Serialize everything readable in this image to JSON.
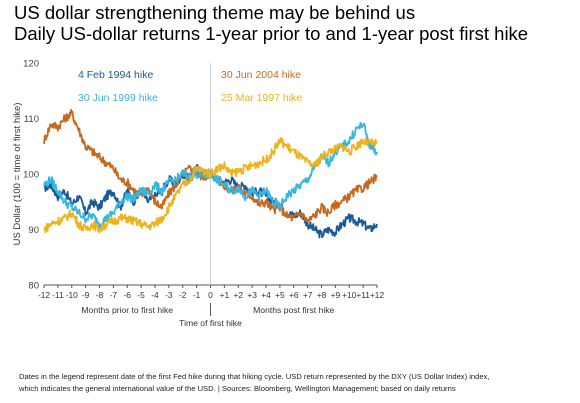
{
  "header": {
    "title": "US dollar strengthening theme may be behind us",
    "subtitle": "Daily US-dollar returns 1-year prior to and 1-year post first hike"
  },
  "footnote": {
    "line1": "Dates in the legend represent date of the first Fed hike during that hiking cycle. USD return represented by the DXY (US Dollar Index) index,",
    "line2": "which indicates the general international value of the USD. | Sources: Bloomberg, Wellington Management; based on daily returns"
  },
  "chart_data": {
    "type": "line",
    "ylabel": "US Dollar (100 = time of first hike)",
    "ylim": [
      80,
      120
    ],
    "yticks": [
      80,
      90,
      100,
      110,
      120
    ],
    "xlim": [
      -12,
      12
    ],
    "xticks": [
      "-12",
      "-11",
      "-10",
      "-9",
      "-8",
      "-7",
      "-6",
      "-5",
      "-4",
      "-3",
      "-2",
      "-1",
      "0",
      "+1",
      "+2",
      "+3",
      "+4",
      "+5",
      "+6",
      "+7",
      "+8",
      "+9",
      "+10",
      "+11",
      "+12"
    ],
    "x_group_labels": {
      "prior": "Months prior to first hike",
      "center": "Time of first hike",
      "post": "Months post first hike"
    },
    "grid": "vertical line at 0 only",
    "series": [
      {
        "name": "4 Feb 1994 hike",
        "color": "#1a5a96",
        "points": [
          [
            -12,
            97.5
          ],
          [
            -11.5,
            98
          ],
          [
            -11,
            96
          ],
          [
            -10.5,
            97
          ],
          [
            -10,
            94.5
          ],
          [
            -9.5,
            96
          ],
          [
            -9,
            93
          ],
          [
            -8.5,
            95
          ],
          [
            -8,
            94
          ],
          [
            -7.5,
            96
          ],
          [
            -7,
            97
          ],
          [
            -6.5,
            94
          ],
          [
            -6,
            97
          ],
          [
            -5.5,
            95
          ],
          [
            -5,
            97
          ],
          [
            -4.5,
            95
          ],
          [
            -4,
            96
          ],
          [
            -3.5,
            97
          ],
          [
            -3,
            99
          ],
          [
            -2.5,
            98
          ],
          [
            -2,
            100
          ],
          [
            -1.5,
            99
          ],
          [
            -1,
            101
          ],
          [
            -0.5,
            100
          ],
          [
            0,
            100
          ],
          [
            0.5,
            99
          ],
          [
            1,
            98.5
          ],
          [
            1.5,
            99
          ],
          [
            2,
            97.5
          ],
          [
            2.5,
            98
          ],
          [
            3,
            96.5
          ],
          [
            3.5,
            97
          ],
          [
            4,
            96
          ],
          [
            4.5,
            95
          ],
          [
            5,
            94.5
          ],
          [
            5.5,
            93
          ],
          [
            6,
            92.5
          ],
          [
            6.5,
            93
          ],
          [
            7,
            91
          ],
          [
            7.5,
            90
          ],
          [
            8,
            89
          ],
          [
            8.5,
            90
          ],
          [
            9,
            89.5
          ],
          [
            9.5,
            91
          ],
          [
            10,
            92
          ],
          [
            10.5,
            91.5
          ],
          [
            11,
            91
          ],
          [
            11.5,
            90
          ],
          [
            12,
            91
          ]
        ]
      },
      {
        "name": "30 Jun 2004 hike",
        "color": "#c8681c",
        "points": [
          [
            -12,
            106
          ],
          [
            -11.5,
            109
          ],
          [
            -11,
            108.5
          ],
          [
            -10.5,
            110
          ],
          [
            -10,
            111
          ],
          [
            -9.5,
            108
          ],
          [
            -9,
            105
          ],
          [
            -8.5,
            104
          ],
          [
            -8,
            103
          ],
          [
            -7.5,
            102
          ],
          [
            -7,
            101
          ],
          [
            -6.5,
            99
          ],
          [
            -6,
            98.5
          ],
          [
            -5.5,
            97
          ],
          [
            -5,
            96
          ],
          [
            -4.5,
            97.5
          ],
          [
            -4,
            95
          ],
          [
            -3.5,
            94
          ],
          [
            -3,
            96.5
          ],
          [
            -2.5,
            98
          ],
          [
            -2,
            100
          ],
          [
            -1.5,
            101
          ],
          [
            -1,
            100
          ],
          [
            -0.5,
            99.5
          ],
          [
            0,
            100
          ],
          [
            0.5,
            99
          ],
          [
            1,
            98
          ],
          [
            1.5,
            97
          ],
          [
            2,
            97.5
          ],
          [
            2.5,
            96.5
          ],
          [
            3,
            96
          ],
          [
            3.5,
            94.5
          ],
          [
            4,
            95
          ],
          [
            4.5,
            93.5
          ],
          [
            5,
            94
          ],
          [
            5.5,
            92.5
          ],
          [
            6,
            92
          ],
          [
            6.5,
            93
          ],
          [
            7,
            91.5
          ],
          [
            7.5,
            92.5
          ],
          [
            8,
            94
          ],
          [
            8.5,
            93
          ],
          [
            9,
            94.5
          ],
          [
            9.5,
            95
          ],
          [
            10,
            96
          ],
          [
            10.5,
            97
          ],
          [
            11,
            97.5
          ],
          [
            11.5,
            98.5
          ],
          [
            12,
            99.5
          ]
        ]
      },
      {
        "name": "30 Jun 1999 hike",
        "color": "#36b6e0",
        "points": [
          [
            -12,
            98
          ],
          [
            -11.5,
            99
          ],
          [
            -11,
            97
          ],
          [
            -10.5,
            95
          ],
          [
            -10,
            94
          ],
          [
            -9.5,
            93
          ],
          [
            -9,
            92
          ],
          [
            -8.5,
            92.5
          ],
          [
            -8,
            91
          ],
          [
            -7.5,
            92
          ],
          [
            -7,
            93
          ],
          [
            -6.5,
            95
          ],
          [
            -6,
            96
          ],
          [
            -5.5,
            95.5
          ],
          [
            -5,
            97
          ],
          [
            -4.5,
            96.5
          ],
          [
            -4,
            98
          ],
          [
            -3.5,
            97
          ],
          [
            -3,
            98.5
          ],
          [
            -2.5,
            99
          ],
          [
            -2,
            100
          ],
          [
            -1.5,
            99.5
          ],
          [
            -1,
            100
          ],
          [
            -0.5,
            99.5
          ],
          [
            0,
            100
          ],
          [
            0.5,
            99
          ],
          [
            1,
            98
          ],
          [
            1.5,
            97
          ],
          [
            2,
            97.5
          ],
          [
            2.5,
            96
          ],
          [
            3,
            97
          ],
          [
            3.5,
            96
          ],
          [
            4,
            97
          ],
          [
            4.5,
            95
          ],
          [
            5,
            94
          ],
          [
            5.5,
            96
          ],
          [
            6,
            97
          ],
          [
            6.5,
            98
          ],
          [
            7,
            99
          ],
          [
            7.5,
            101
          ],
          [
            8,
            103
          ],
          [
            8.5,
            102
          ],
          [
            9,
            104
          ],
          [
            9.5,
            105
          ],
          [
            10,
            106
          ],
          [
            10.5,
            108
          ],
          [
            11,
            109
          ],
          [
            11.5,
            105
          ],
          [
            12,
            104
          ]
        ]
      },
      {
        "name": "25 Mar 1997 hike",
        "color": "#f0b21c",
        "points": [
          [
            -12,
            90
          ],
          [
            -11.5,
            91
          ],
          [
            -11,
            91.5
          ],
          [
            -10.5,
            92
          ],
          [
            -10,
            93
          ],
          [
            -9.5,
            91
          ],
          [
            -9,
            90
          ],
          [
            -8.5,
            91
          ],
          [
            -8,
            90
          ],
          [
            -7.5,
            91
          ],
          [
            -7,
            91.5
          ],
          [
            -6.5,
            92
          ],
          [
            -6,
            92
          ],
          [
            -5.5,
            91.5
          ],
          [
            -5,
            91
          ],
          [
            -4.5,
            90.5
          ],
          [
            -4,
            91
          ],
          [
            -3.5,
            92
          ],
          [
            -3,
            94
          ],
          [
            -2.5,
            96
          ],
          [
            -2,
            98
          ],
          [
            -1.5,
            99
          ],
          [
            -1,
            101
          ],
          [
            -0.5,
            100.5
          ],
          [
            0,
            100
          ],
          [
            0.5,
            101
          ],
          [
            1,
            101.5
          ],
          [
            1.5,
            100
          ],
          [
            2,
            100.5
          ],
          [
            2.5,
            101
          ],
          [
            3,
            101.5
          ],
          [
            3.5,
            102
          ],
          [
            4,
            102.5
          ],
          [
            4.5,
            104
          ],
          [
            5,
            106
          ],
          [
            5.5,
            105
          ],
          [
            6,
            104
          ],
          [
            6.5,
            103
          ],
          [
            7,
            102
          ],
          [
            7.5,
            101.5
          ],
          [
            8,
            103
          ],
          [
            8.5,
            104
          ],
          [
            9,
            104.5
          ],
          [
            9.5,
            105
          ],
          [
            10,
            104
          ],
          [
            10.5,
            105
          ],
          [
            11,
            106
          ],
          [
            11.5,
            105.5
          ],
          [
            12,
            105.5
          ]
        ]
      }
    ],
    "legend": [
      {
        "label": "4 Feb 1994 hike",
        "color": "#1a5a96"
      },
      {
        "label": "30 Jun 2004 hike",
        "color": "#c8681c"
      },
      {
        "label": "30 Jun 1999 hike",
        "color": "#36b6e0"
      },
      {
        "label": "25 Mar 1997 hike",
        "color": "#f0b21c"
      }
    ]
  }
}
